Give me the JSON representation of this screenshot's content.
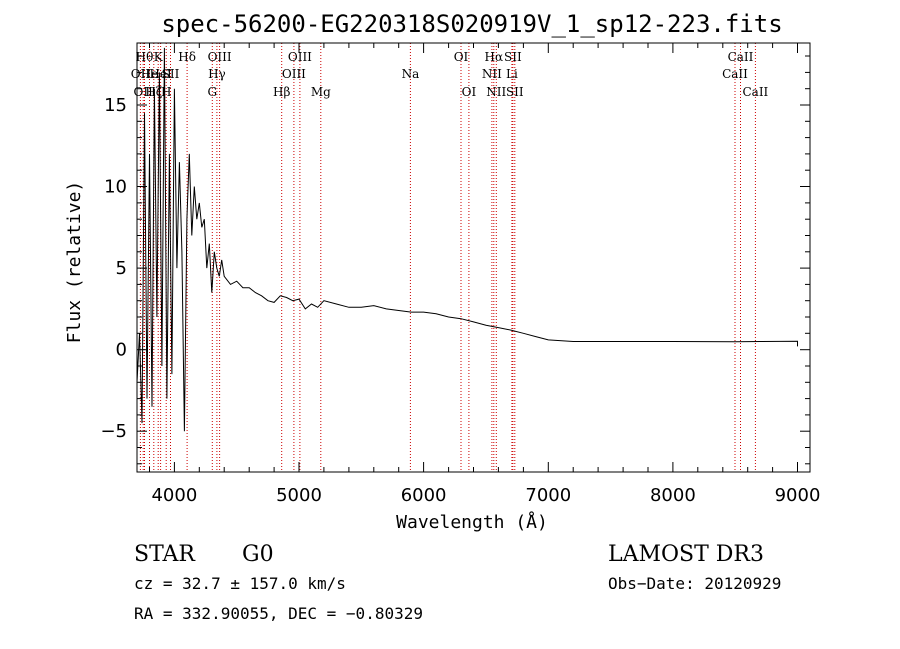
{
  "chart_data": {
    "type": "line",
    "title": "spec-56200-EG220318S020919V_1_sp12-223.fits",
    "xlabel": "Wavelength (Å)",
    "ylabel": "Flux (relative)",
    "xlim": [
      3700,
      9100
    ],
    "ylim": [
      -7.5,
      18.8
    ],
    "xticks": [
      4000,
      5000,
      6000,
      7000,
      8000,
      9000
    ],
    "yticks": [
      -5,
      0,
      5,
      10,
      15
    ],
    "xtick_labels": [
      "4000",
      "5000",
      "6000",
      "7000",
      "8000",
      "9000"
    ],
    "ytick_labels": [
      "−5",
      "0",
      "5",
      "10",
      "15"
    ],
    "line_color": "#000000",
    "marker_color": "#cc0000",
    "series": [
      {
        "name": "spectrum",
        "x": [
          3700,
          3720,
          3740,
          3760,
          3780,
          3800,
          3820,
          3840,
          3860,
          3880,
          3900,
          3920,
          3940,
          3960,
          3980,
          4000,
          4020,
          4040,
          4060,
          4080,
          4100,
          4120,
          4140,
          4160,
          4180,
          4200,
          4220,
          4240,
          4260,
          4280,
          4300,
          4320,
          4340,
          4360,
          4380,
          4400,
          4450,
          4500,
          4550,
          4600,
          4650,
          4700,
          4750,
          4800,
          4850,
          4900,
          4950,
          5000,
          5050,
          5100,
          5150,
          5200,
          5300,
          5400,
          5500,
          5600,
          5700,
          5800,
          5900,
          6000,
          6100,
          6200,
          6300,
          6400,
          6500,
          6600,
          6700,
          6800,
          6900,
          7000,
          7200,
          7500,
          8000,
          8500,
          8700,
          9000,
          9000
        ],
        "y": [
          -2.0,
          1.0,
          -4.5,
          14.5,
          -3.0,
          12.0,
          -3.5,
          16.0,
          2.0,
          17.0,
          -1.0,
          18.5,
          -3.0,
          12.0,
          -1.5,
          16.0,
          5.0,
          11.5,
          6.0,
          -5.0,
          8.0,
          12.0,
          7.0,
          10.0,
          8.0,
          9.0,
          7.5,
          8.0,
          5.0,
          6.5,
          3.5,
          6.0,
          5.0,
          4.5,
          5.5,
          4.5,
          4.0,
          4.2,
          3.8,
          3.8,
          3.5,
          3.3,
          3.0,
          2.9,
          3.3,
          3.2,
          3.0,
          3.1,
          2.5,
          2.8,
          2.6,
          3.0,
          2.8,
          2.6,
          2.6,
          2.7,
          2.5,
          2.4,
          2.3,
          2.3,
          2.2,
          2.0,
          1.9,
          1.7,
          1.5,
          1.35,
          1.2,
          1.0,
          0.8,
          0.6,
          0.5,
          0.5,
          0.5,
          0.48,
          0.5,
          0.52,
          0.2
        ]
      }
    ],
    "lines": [
      {
        "wl": 3727,
        "label": "OII",
        "row": 1
      },
      {
        "wl": 3750,
        "label": "OII",
        "row": 2
      },
      {
        "wl": 3760,
        "label": "Hθ",
        "row": 0
      },
      {
        "wl": 3800,
        "label": "He",
        "row": 1
      },
      {
        "wl": 3835,
        "label": "Hζ",
        "row": 2
      },
      {
        "wl": 3870,
        "label": "K",
        "row": 0
      },
      {
        "wl": 3889,
        "label": "HeI",
        "row": 1
      },
      {
        "wl": 3934,
        "label": "H",
        "row": 2
      },
      {
        "wl": 3969,
        "label": "SII",
        "row": 1
      },
      {
        "wl": 4102,
        "label": "Hδ",
        "row": 0
      },
      {
        "wl": 4304,
        "label": "G",
        "row": 2
      },
      {
        "wl": 4341,
        "label": "Hγ",
        "row": 1
      },
      {
        "wl": 4363,
        "label": "OIII",
        "row": 0
      },
      {
        "wl": 4861,
        "label": "Hβ",
        "row": 2
      },
      {
        "wl": 4959,
        "label": "OIII",
        "row": 1
      },
      {
        "wl": 5007,
        "label": "OIII",
        "row": 0
      },
      {
        "wl": 5175,
        "label": "Mg",
        "row": 2
      },
      {
        "wl": 5894,
        "label": "Na",
        "row": 1
      },
      {
        "wl": 6300,
        "label": "OI",
        "row": 0
      },
      {
        "wl": 6363,
        "label": "OI",
        "row": 2
      },
      {
        "wl": 6548,
        "label": "NII",
        "row": 1
      },
      {
        "wl": 6563,
        "label": "Hα",
        "row": 0
      },
      {
        "wl": 6583,
        "label": "NII",
        "row": 2
      },
      {
        "wl": 6708,
        "label": "Li",
        "row": 1
      },
      {
        "wl": 6716,
        "label": "SII",
        "row": 0
      },
      {
        "wl": 6731,
        "label": "SII",
        "row": 2
      },
      {
        "wl": 8498,
        "label": "CaII",
        "row": 1
      },
      {
        "wl": 8542,
        "label": "CaII",
        "row": 0
      },
      {
        "wl": 8662,
        "label": "CaII",
        "row": 2
      }
    ]
  },
  "info": {
    "class": "STAR",
    "subclass": "G0",
    "survey": "LAMOST DR3",
    "cz": "cz = 32.7 ± 157.0 km/s",
    "obsdate": "Obs−Date: 20120929",
    "radec": "RA = 332.90055, DEC =  −0.80329"
  }
}
